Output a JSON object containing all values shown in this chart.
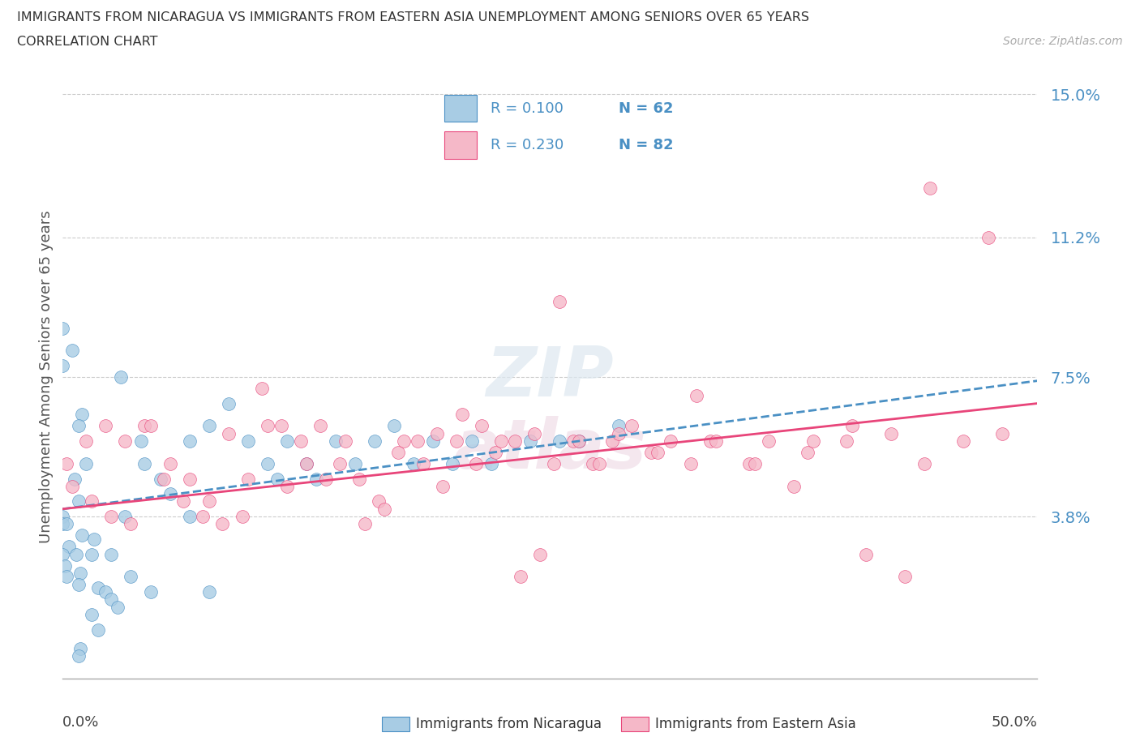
{
  "title_line1": "IMMIGRANTS FROM NICARAGUA VS IMMIGRANTS FROM EASTERN ASIA UNEMPLOYMENT AMONG SENIORS OVER 65 YEARS",
  "title_line2": "CORRELATION CHART",
  "source": "Source: ZipAtlas.com",
  "ylabel": "Unemployment Among Seniors over 65 years",
  "xlim": [
    0,
    0.5
  ],
  "ylim": [
    -0.005,
    0.155
  ],
  "ytick_vals": [
    0.0,
    0.038,
    0.075,
    0.112,
    0.15
  ],
  "ytick_labels": [
    "",
    "3.8%",
    "7.5%",
    "11.2%",
    "15.0%"
  ],
  "xtick_left_label": "0.0%",
  "xtick_right_label": "50.0%",
  "legend_blue_r": "R = 0.100",
  "legend_blue_n": "N = 62",
  "legend_pink_r": "R = 0.230",
  "legend_pink_n": "N = 82",
  "color_blue": "#a8cce4",
  "color_pink": "#f5b8c8",
  "color_blue_dark": "#4a90c4",
  "color_pink_dark": "#e8457a",
  "color_legend_text": "#4a90c4",
  "label_blue": "Immigrants from Nicaragua",
  "label_pink": "Immigrants from Eastern Asia",
  "blue_scatter_x": [
    0.01,
    0.03,
    0.0,
    0.005,
    0.0,
    0.008,
    0.012,
    0.006,
    0.008,
    0.0,
    0.0,
    0.002,
    0.01,
    0.003,
    0.0,
    0.007,
    0.015,
    0.001,
    0.009,
    0.002,
    0.008,
    0.018,
    0.022,
    0.025,
    0.028,
    0.015,
    0.032,
    0.04,
    0.042,
    0.05,
    0.055,
    0.065,
    0.075,
    0.085,
    0.095,
    0.105,
    0.11,
    0.115,
    0.125,
    0.13,
    0.14,
    0.15,
    0.16,
    0.17,
    0.18,
    0.19,
    0.2,
    0.21,
    0.22,
    0.24,
    0.255,
    0.265,
    0.285,
    0.018,
    0.009,
    0.008,
    0.016,
    0.025,
    0.035,
    0.045,
    0.065,
    0.075
  ],
  "blue_scatter_y": [
    0.065,
    0.075,
    0.088,
    0.082,
    0.078,
    0.062,
    0.052,
    0.048,
    0.042,
    0.038,
    0.036,
    0.036,
    0.033,
    0.03,
    0.028,
    0.028,
    0.028,
    0.025,
    0.023,
    0.022,
    0.02,
    0.019,
    0.018,
    0.016,
    0.014,
    0.012,
    0.038,
    0.058,
    0.052,
    0.048,
    0.044,
    0.058,
    0.062,
    0.068,
    0.058,
    0.052,
    0.048,
    0.058,
    0.052,
    0.048,
    0.058,
    0.052,
    0.058,
    0.062,
    0.052,
    0.058,
    0.052,
    0.058,
    0.052,
    0.058,
    0.058,
    0.058,
    0.062,
    0.008,
    0.003,
    0.001,
    0.032,
    0.028,
    0.022,
    0.018,
    0.038,
    0.018
  ],
  "pink_scatter_x": [
    0.002,
    0.012,
    0.022,
    0.032,
    0.042,
    0.052,
    0.062,
    0.072,
    0.082,
    0.092,
    0.102,
    0.112,
    0.122,
    0.132,
    0.142,
    0.152,
    0.162,
    0.172,
    0.182,
    0.192,
    0.202,
    0.212,
    0.222,
    0.232,
    0.242,
    0.252,
    0.262,
    0.272,
    0.282,
    0.292,
    0.302,
    0.312,
    0.322,
    0.332,
    0.352,
    0.362,
    0.382,
    0.402,
    0.412,
    0.432,
    0.442,
    0.462,
    0.482,
    0.005,
    0.015,
    0.025,
    0.035,
    0.045,
    0.055,
    0.065,
    0.075,
    0.085,
    0.095,
    0.105,
    0.115,
    0.125,
    0.135,
    0.145,
    0.155,
    0.165,
    0.175,
    0.185,
    0.195,
    0.205,
    0.215,
    0.225,
    0.235,
    0.245,
    0.255,
    0.265,
    0.275,
    0.285,
    0.305,
    0.325,
    0.335,
    0.355,
    0.375,
    0.385,
    0.405,
    0.425,
    0.445,
    0.475
  ],
  "pink_scatter_y": [
    0.052,
    0.058,
    0.062,
    0.058,
    0.062,
    0.048,
    0.042,
    0.038,
    0.036,
    0.038,
    0.072,
    0.062,
    0.058,
    0.062,
    0.052,
    0.048,
    0.042,
    0.055,
    0.058,
    0.06,
    0.058,
    0.052,
    0.055,
    0.058,
    0.06,
    0.052,
    0.058,
    0.052,
    0.058,
    0.062,
    0.055,
    0.058,
    0.052,
    0.058,
    0.052,
    0.058,
    0.055,
    0.058,
    0.028,
    0.022,
    0.052,
    0.058,
    0.06,
    0.046,
    0.042,
    0.038,
    0.036,
    0.062,
    0.052,
    0.048,
    0.042,
    0.06,
    0.048,
    0.062,
    0.046,
    0.052,
    0.048,
    0.058,
    0.036,
    0.04,
    0.058,
    0.052,
    0.046,
    0.065,
    0.062,
    0.058,
    0.022,
    0.028,
    0.095,
    0.058,
    0.052,
    0.06,
    0.055,
    0.07,
    0.058,
    0.052,
    0.046,
    0.058,
    0.062,
    0.06,
    0.125,
    0.112
  ]
}
